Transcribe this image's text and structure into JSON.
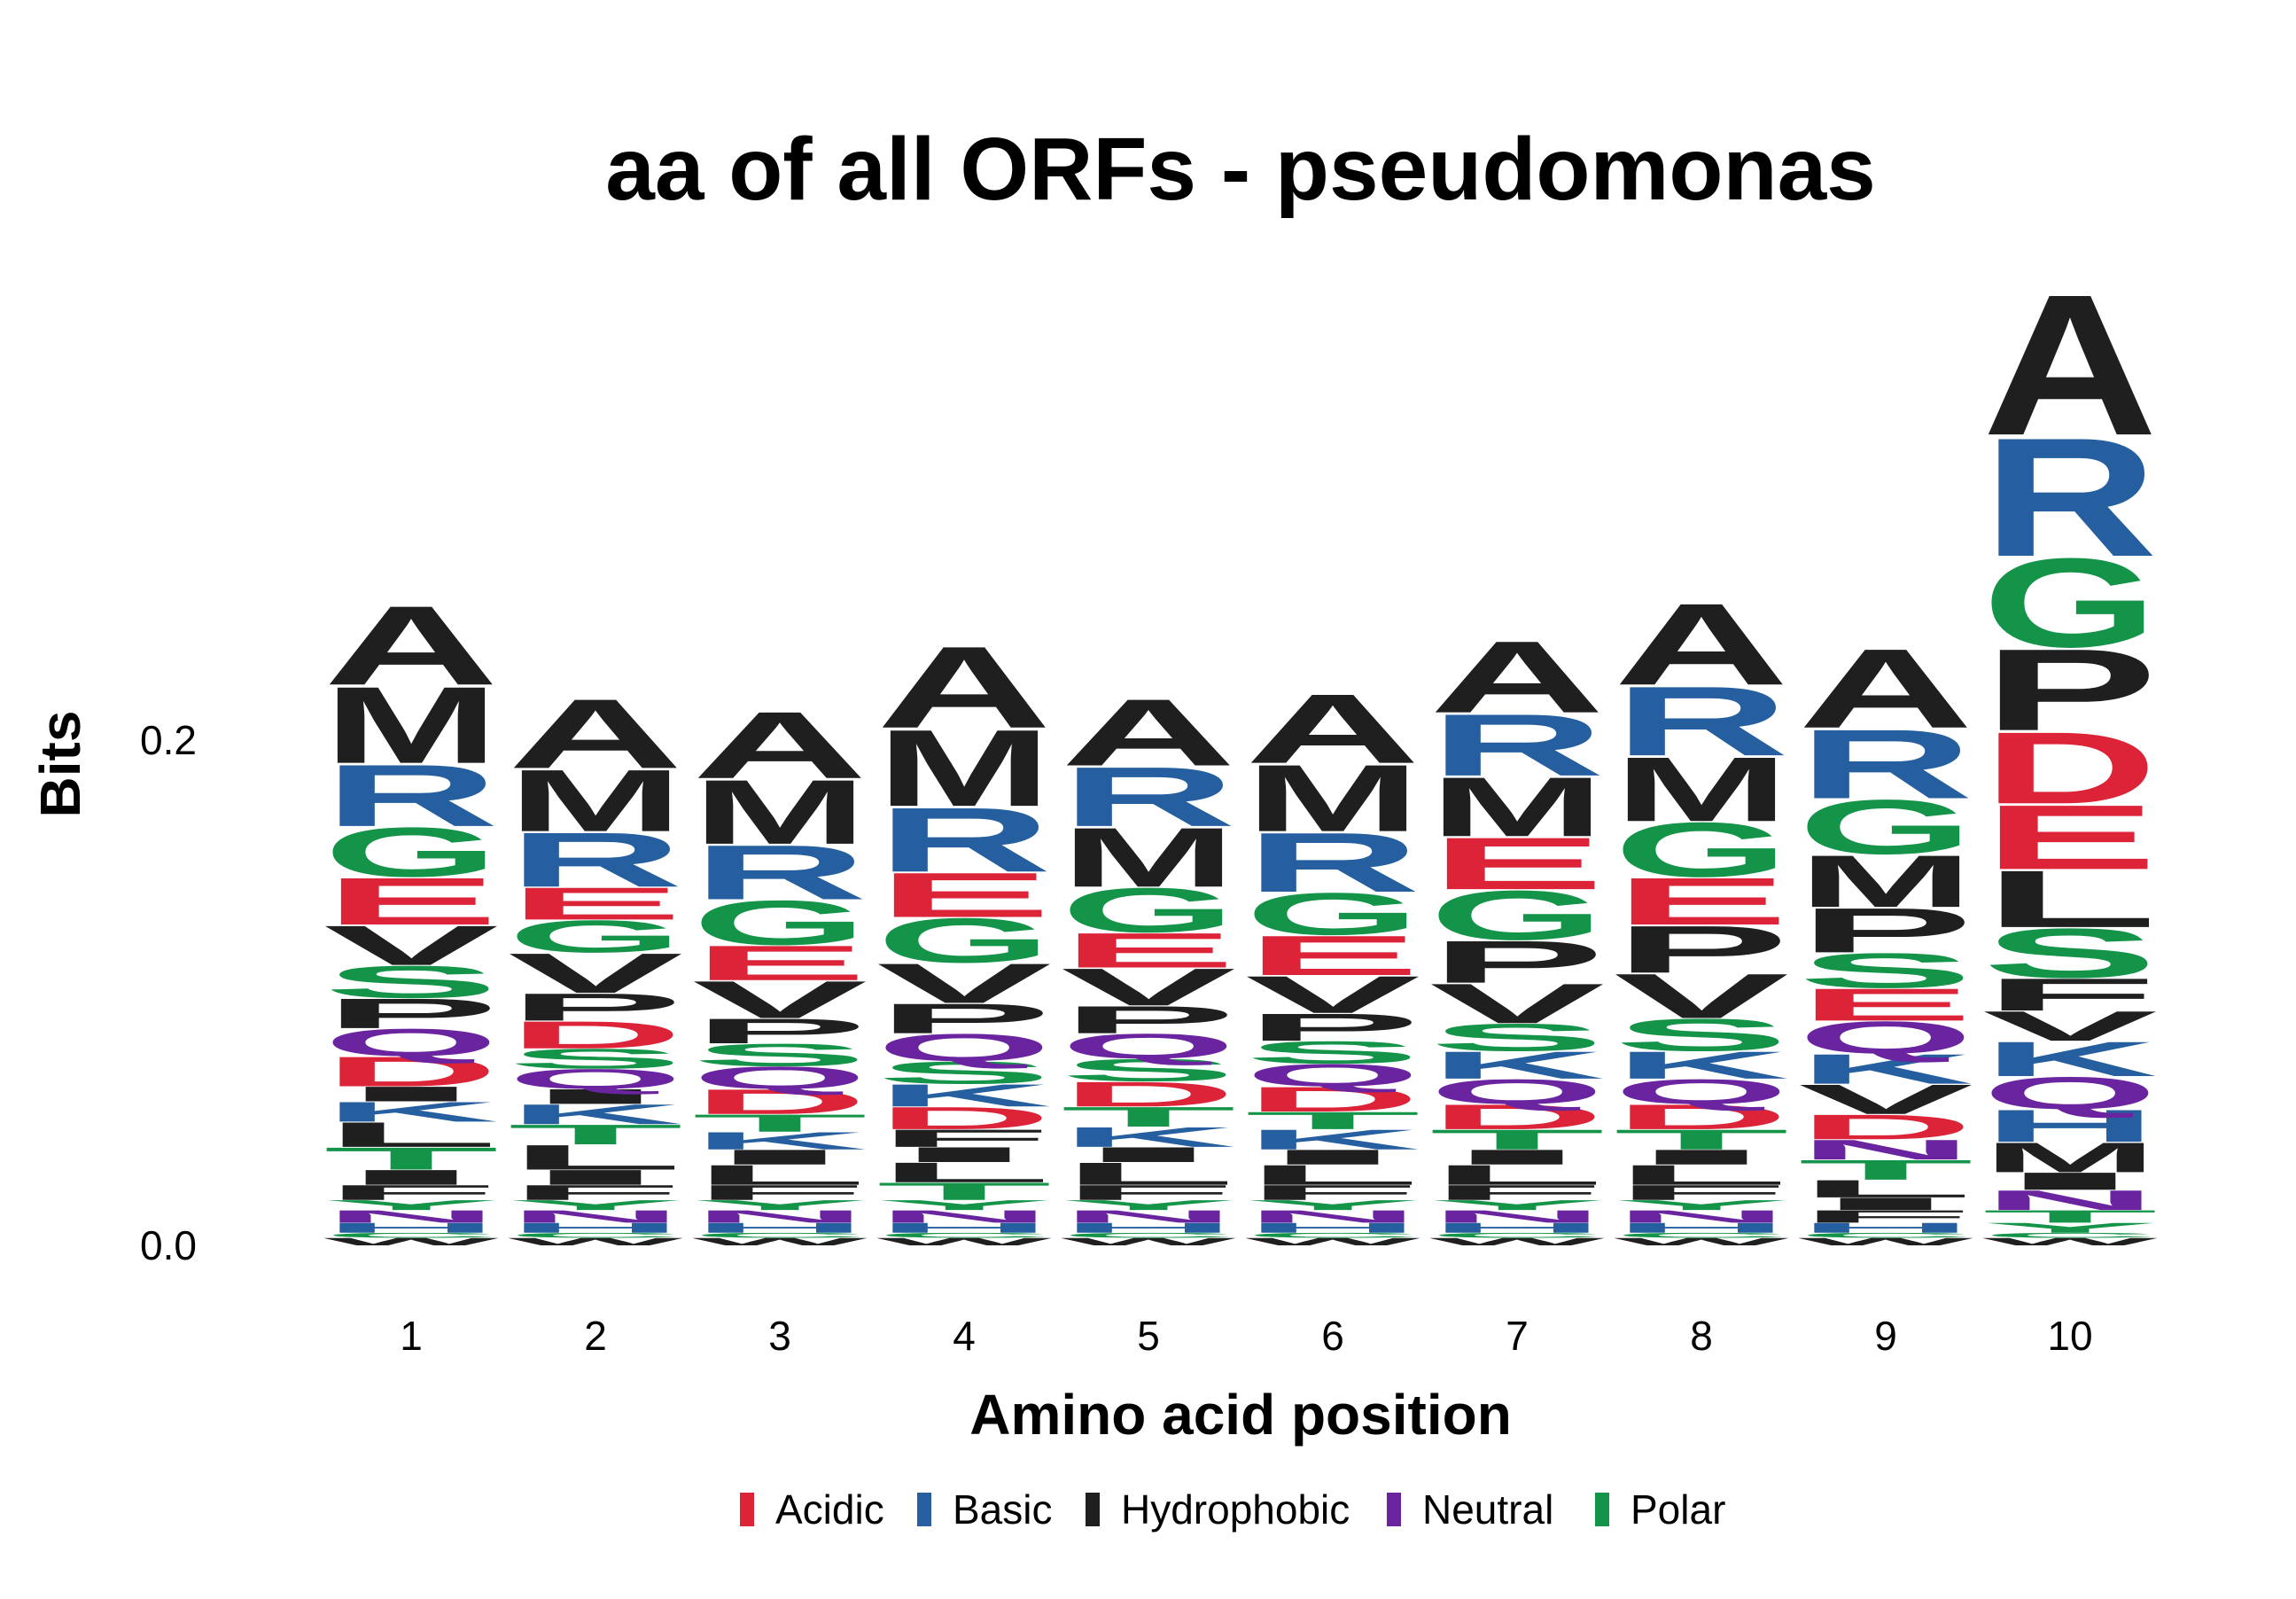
{
  "colors": {
    "Acidic": "#dc2338",
    "Basic": "#255fa0",
    "Hydrophobic": "#1f1f1f",
    "Neutral": "#6a24a0",
    "Polar": "#149448"
  },
  "chart_data": {
    "type": "sequence-logo",
    "title": "aa of all ORFs - pseudomonas",
    "xlabel": "Amino acid position",
    "ylabel": "Bits",
    "ylim": [
      0,
      0.27
    ],
    "yticks": [
      {
        "value": 0.0,
        "label": "0.0"
      },
      {
        "value": 0.2,
        "label": "0.2"
      }
    ],
    "categories": [
      "1",
      "2",
      "3",
      "4",
      "5",
      "6",
      "7",
      "8",
      "9",
      "10"
    ],
    "legend": [
      {
        "label": "Acidic",
        "group": "Acidic"
      },
      {
        "label": "Basic",
        "group": "Basic"
      },
      {
        "label": "Hydrophobic",
        "group": "Hydrophobic"
      },
      {
        "label": "Neutral",
        "group": "Neutral"
      },
      {
        "label": "Polar",
        "group": "Polar"
      }
    ],
    "letter_groups": {
      "A": "Hydrophobic",
      "M": "Hydrophobic",
      "V": "Hydrophobic",
      "P": "Hydrophobic",
      "L": "Hydrophobic",
      "I": "Hydrophobic",
      "F": "Hydrophobic",
      "W": "Hydrophobic",
      "R": "Basic",
      "K": "Basic",
      "H": "Basic",
      "E": "Acidic",
      "D": "Acidic",
      "G": "Polar",
      "S": "Polar",
      "T": "Polar",
      "Y": "Polar",
      "C": "Polar",
      "Q": "Neutral",
      "N": "Neutral"
    },
    "positions": [
      {
        "position": "1",
        "stack": [
          [
            "W",
            0.003
          ],
          [
            "C",
            0.002
          ],
          [
            "H",
            0.004
          ],
          [
            "N",
            0.005
          ],
          [
            "Y",
            0.004
          ],
          [
            "F",
            0.006
          ],
          [
            "I",
            0.006
          ],
          [
            "T",
            0.009
          ],
          [
            "L",
            0.01
          ],
          [
            "K",
            0.008
          ],
          [
            "I",
            0.006
          ],
          [
            "D",
            0.012
          ],
          [
            "Q",
            0.011
          ],
          [
            "P",
            0.012
          ],
          [
            "S",
            0.013
          ],
          [
            "V",
            0.016
          ],
          [
            "E",
            0.019
          ],
          [
            "G",
            0.02
          ],
          [
            "R",
            0.025
          ],
          [
            "M",
            0.031
          ],
          [
            "A",
            0.032
          ]
        ]
      },
      {
        "position": "2",
        "stack": [
          [
            "W",
            0.003
          ],
          [
            "C",
            0.002
          ],
          [
            "H",
            0.004
          ],
          [
            "N",
            0.005
          ],
          [
            "Y",
            0.004
          ],
          [
            "F",
            0.006
          ],
          [
            "I",
            0.006
          ],
          [
            "L",
            0.01
          ],
          [
            "T",
            0.008
          ],
          [
            "K",
            0.008
          ],
          [
            "I",
            0.006
          ],
          [
            "Q",
            0.008
          ],
          [
            "S",
            0.008
          ],
          [
            "D",
            0.011
          ],
          [
            "P",
            0.011
          ],
          [
            "V",
            0.016
          ],
          [
            "G",
            0.013
          ],
          [
            "E",
            0.013
          ],
          [
            "R",
            0.022
          ],
          [
            "M",
            0.025
          ],
          [
            "A",
            0.028
          ]
        ]
      },
      {
        "position": "3",
        "stack": [
          [
            "W",
            0.003
          ],
          [
            "C",
            0.002
          ],
          [
            "H",
            0.004
          ],
          [
            "N",
            0.005
          ],
          [
            "Y",
            0.004
          ],
          [
            "F",
            0.006
          ],
          [
            "L",
            0.008
          ],
          [
            "I",
            0.006
          ],
          [
            "K",
            0.007
          ],
          [
            "T",
            0.007
          ],
          [
            "D",
            0.01
          ],
          [
            "Q",
            0.009
          ],
          [
            "S",
            0.009
          ],
          [
            "P",
            0.01
          ],
          [
            "V",
            0.015
          ],
          [
            "E",
            0.014
          ],
          [
            "G",
            0.018
          ],
          [
            "R",
            0.022
          ],
          [
            "M",
            0.026
          ],
          [
            "A",
            0.027
          ]
        ]
      },
      {
        "position": "4",
        "stack": [
          [
            "W",
            0.003
          ],
          [
            "C",
            0.002
          ],
          [
            "H",
            0.004
          ],
          [
            "N",
            0.005
          ],
          [
            "Y",
            0.004
          ],
          [
            "T",
            0.007
          ],
          [
            "L",
            0.008
          ],
          [
            "I",
            0.006
          ],
          [
            "F",
            0.007
          ],
          [
            "D",
            0.009
          ],
          [
            "K",
            0.009
          ],
          [
            "S",
            0.009
          ],
          [
            "Q",
            0.011
          ],
          [
            "P",
            0.012
          ],
          [
            "V",
            0.016
          ],
          [
            "G",
            0.018
          ],
          [
            "E",
            0.018
          ],
          [
            "R",
            0.026
          ],
          [
            "M",
            0.031
          ],
          [
            "A",
            0.033
          ]
        ]
      },
      {
        "position": "5",
        "stack": [
          [
            "W",
            0.003
          ],
          [
            "C",
            0.002
          ],
          [
            "H",
            0.004
          ],
          [
            "N",
            0.005
          ],
          [
            "Y",
            0.004
          ],
          [
            "F",
            0.006
          ],
          [
            "L",
            0.009
          ],
          [
            "I",
            0.006
          ],
          [
            "K",
            0.008
          ],
          [
            "T",
            0.008
          ],
          [
            "D",
            0.01
          ],
          [
            "S",
            0.009
          ],
          [
            "Q",
            0.01
          ],
          [
            "P",
            0.011
          ],
          [
            "V",
            0.015
          ],
          [
            "E",
            0.014
          ],
          [
            "G",
            0.018
          ],
          [
            "M",
            0.024
          ],
          [
            "R",
            0.024
          ],
          [
            "A",
            0.027
          ]
        ]
      },
      {
        "position": "6",
        "stack": [
          [
            "W",
            0.003
          ],
          [
            "C",
            0.002
          ],
          [
            "H",
            0.004
          ],
          [
            "N",
            0.005
          ],
          [
            "Y",
            0.004
          ],
          [
            "F",
            0.006
          ],
          [
            "L",
            0.008
          ],
          [
            "I",
            0.006
          ],
          [
            "K",
            0.008
          ],
          [
            "T",
            0.007
          ],
          [
            "D",
            0.01
          ],
          [
            "Q",
            0.009
          ],
          [
            "S",
            0.009
          ],
          [
            "P",
            0.011
          ],
          [
            "V",
            0.015
          ],
          [
            "E",
            0.016
          ],
          [
            "G",
            0.017
          ],
          [
            "R",
            0.024
          ],
          [
            "M",
            0.027
          ],
          [
            "A",
            0.028
          ]
        ]
      },
      {
        "position": "7",
        "stack": [
          [
            "W",
            0.003
          ],
          [
            "C",
            0.002
          ],
          [
            "H",
            0.004
          ],
          [
            "N",
            0.005
          ],
          [
            "Y",
            0.004
          ],
          [
            "F",
            0.006
          ],
          [
            "L",
            0.008
          ],
          [
            "I",
            0.006
          ],
          [
            "T",
            0.008
          ],
          [
            "D",
            0.01
          ],
          [
            "Q",
            0.01
          ],
          [
            "K",
            0.011
          ],
          [
            "S",
            0.011
          ],
          [
            "V",
            0.016
          ],
          [
            "P",
            0.017
          ],
          [
            "G",
            0.02
          ],
          [
            "E",
            0.021
          ],
          [
            "M",
            0.024
          ],
          [
            "R",
            0.025
          ],
          [
            "A",
            0.029
          ]
        ]
      },
      {
        "position": "8",
        "stack": [
          [
            "W",
            0.003
          ],
          [
            "C",
            0.002
          ],
          [
            "H",
            0.004
          ],
          [
            "N",
            0.005
          ],
          [
            "Y",
            0.004
          ],
          [
            "F",
            0.006
          ],
          [
            "L",
            0.008
          ],
          [
            "I",
            0.006
          ],
          [
            "T",
            0.008
          ],
          [
            "D",
            0.01
          ],
          [
            "Q",
            0.01
          ],
          [
            "K",
            0.011
          ],
          [
            "S",
            0.013
          ],
          [
            "V",
            0.018
          ],
          [
            "P",
            0.019
          ],
          [
            "E",
            0.019
          ],
          [
            "G",
            0.022
          ],
          [
            "M",
            0.026
          ],
          [
            "R",
            0.028
          ],
          [
            "A",
            0.033
          ]
        ]
      },
      {
        "position": "9",
        "stack": [
          [
            "W",
            0.003
          ],
          [
            "C",
            0.002
          ],
          [
            "H",
            0.004
          ],
          [
            "F",
            0.005
          ],
          [
            "I",
            0.005
          ],
          [
            "L",
            0.007
          ],
          [
            "T",
            0.008
          ],
          [
            "N",
            0.008
          ],
          [
            "D",
            0.01
          ],
          [
            "V",
            0.012
          ],
          [
            "K",
            0.012
          ],
          [
            "Q",
            0.013
          ],
          [
            "E",
            0.013
          ],
          [
            "S",
            0.014
          ],
          [
            "P",
            0.018
          ],
          [
            "M",
            0.021
          ],
          [
            "G",
            0.022
          ],
          [
            "R",
            0.028
          ],
          [
            "A",
            0.032
          ]
        ]
      },
      {
        "position": "10",
        "stack": [
          [
            "W",
            0.003
          ],
          [
            "C",
            0.002
          ],
          [
            "Y",
            0.004
          ],
          [
            "T",
            0.005
          ],
          [
            "N",
            0.008
          ],
          [
            "I",
            0.007
          ],
          [
            "M",
            0.012
          ],
          [
            "H",
            0.013
          ],
          [
            "Q",
            0.013
          ],
          [
            "K",
            0.014
          ],
          [
            "V",
            0.012
          ],
          [
            "F",
            0.013
          ],
          [
            "S",
            0.02
          ],
          [
            "L",
            0.023
          ],
          [
            "E",
            0.026
          ],
          [
            "D",
            0.029
          ],
          [
            "P",
            0.033
          ],
          [
            "G",
            0.036
          ],
          [
            "R",
            0.048
          ],
          [
            "A",
            0.057
          ]
        ]
      }
    ]
  }
}
